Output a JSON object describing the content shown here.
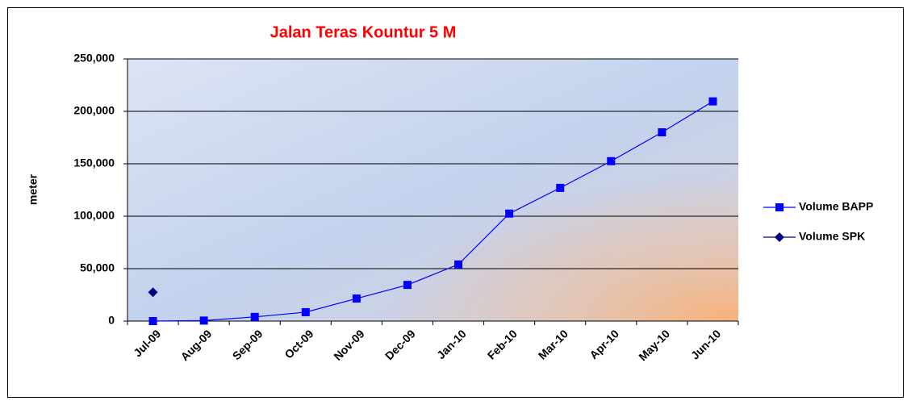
{
  "chart_data": {
    "type": "line",
    "title": "Jalan Teras Kountur 5 M",
    "y_label": "meter",
    "categories": [
      "Jul-09",
      "Aug-09",
      "Sep-09",
      "Oct-09",
      "Nov-09",
      "Dec-09",
      "Jan-10",
      "Feb-10",
      "Mar-10",
      "Apr-10",
      "May-10",
      "Jun-10"
    ],
    "series": [
      {
        "name": "Volume BAPP",
        "color": "#0000ff",
        "marker": "square",
        "values": [
          0,
          500,
          4000,
          8500,
          21500,
          34500,
          54000,
          102500,
          127000,
          152500,
          180000,
          209500
        ]
      },
      {
        "name": "Volume SPK",
        "color": "#000080",
        "marker": "diamond",
        "values": [
          27500,
          null,
          null,
          null,
          null,
          null,
          null,
          null,
          null,
          null,
          null,
          null
        ]
      }
    ],
    "ylim": [
      0,
      250000
    ],
    "yticks": [
      0,
      {
        "value": 50000,
        "label": "50,000"
      },
      {
        "value": 100000,
        "label": "100,000"
      },
      {
        "value": 150000,
        "label": "150,000"
      },
      {
        "value": 200000,
        "label": "200,000"
      },
      {
        "value": 250000,
        "label": "250,000"
      }
    ],
    "grid": true,
    "legend": "right"
  }
}
